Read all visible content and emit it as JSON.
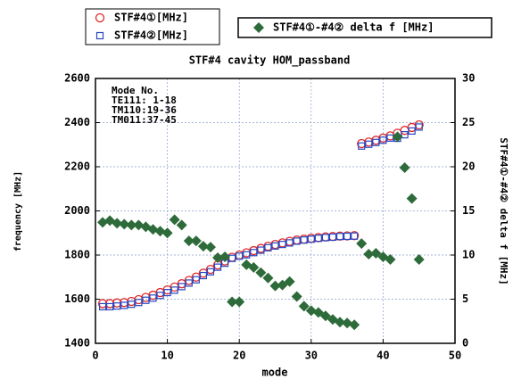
{
  "chart_data": {
    "type": "scatter",
    "title": "STF#4 cavity HOM_passband",
    "x_label": "mode",
    "y_label": "frequency [MHz]",
    "y2_label": "STF#4①-#4② delta f [MHz]",
    "annotation": [
      "Mode No.",
      "TE111: 1-18",
      "TM110:19-36",
      "TM011:37-45"
    ],
    "x": [
      1,
      2,
      3,
      4,
      5,
      6,
      7,
      8,
      9,
      10,
      11,
      12,
      13,
      14,
      15,
      16,
      17,
      18,
      19,
      20,
      21,
      22,
      23,
      24,
      25,
      26,
      27,
      28,
      29,
      30,
      31,
      32,
      33,
      34,
      35,
      36,
      37,
      38,
      39,
      40,
      41,
      42,
      43,
      44,
      45
    ],
    "xlim": [
      0,
      50
    ],
    "xticks": [
      0,
      10,
      20,
      30,
      40,
      50
    ],
    "ylim": [
      1400,
      2600
    ],
    "yticks": [
      1400,
      1600,
      1800,
      2000,
      2200,
      2400,
      2600
    ],
    "y2lim": [
      0,
      30
    ],
    "y2ticks": [
      0,
      5,
      10,
      15,
      20,
      25,
      30
    ],
    "grid": true,
    "series": [
      {
        "name": "STF#4①[MHz]",
        "color": "#e02828",
        "marker": "circle",
        "values": [
          1580,
          1580,
          1583,
          1585,
          1590,
          1598,
          1608,
          1618,
          1630,
          1642,
          1655,
          1670,
          1685,
          1700,
          1718,
          1735,
          1755,
          1773,
          1790,
          1800,
          1810,
          1820,
          1830,
          1840,
          1848,
          1855,
          1862,
          1868,
          1872,
          1876,
          1879,
          1882,
          1884,
          1886,
          1887,
          1888,
          2305,
          2312,
          2320,
          2330,
          2340,
          2352,
          2365,
          2378,
          2390
        ]
      },
      {
        "name": "STF#4②[MHz]",
        "color": "#2848c0",
        "marker": "square",
        "values": [
          1566,
          1566,
          1569,
          1572,
          1577,
          1585,
          1595,
          1605,
          1617,
          1630,
          1641,
          1657,
          1673,
          1688,
          1707,
          1724,
          1745,
          1763,
          1785,
          1795,
          1801,
          1811,
          1822,
          1833,
          1841,
          1848,
          1855,
          1863,
          1868,
          1872,
          1876,
          1879,
          1881,
          1884,
          1885,
          1886,
          2294,
          2302,
          2310,
          2320,
          2330,
          2329,
          2345,
          2362,
          2380
        ]
      },
      {
        "name": "STF#4①-#4② delta f [MHz]",
        "color": "#2e6b3a",
        "marker": "diamond",
        "axis": "y2",
        "values": [
          13.7,
          13.9,
          13.6,
          13.5,
          13.4,
          13.4,
          13.2,
          12.9,
          12.7,
          12.5,
          14.0,
          13.4,
          11.6,
          11.6,
          11.0,
          10.9,
          9.7,
          9.8,
          4.7,
          4.7,
          8.9,
          8.6,
          8.0,
          7.4,
          6.5,
          6.6,
          7.0,
          5.3,
          4.2,
          3.7,
          3.5,
          3.1,
          2.7,
          2.4,
          2.3,
          2.1,
          11.3,
          10.1,
          10.2,
          9.8,
          9.5,
          23.4,
          19.9,
          16.4,
          9.5
        ]
      }
    ]
  }
}
